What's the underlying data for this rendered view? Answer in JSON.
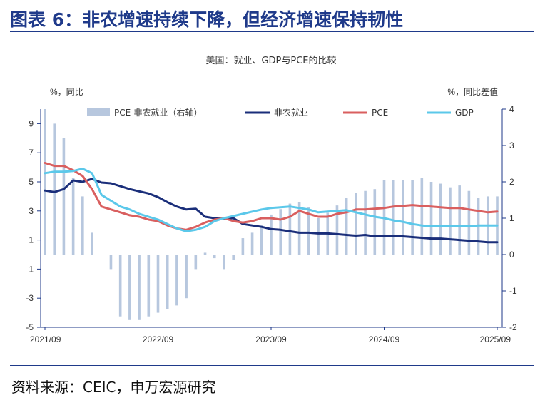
{
  "header": {
    "title": "图表 6：非农增速持续下降，但经济增速保持韧性"
  },
  "footer": {
    "source": "资料来源：CEIC，申万宏源研究"
  },
  "chart_data": {
    "type": "bar+line",
    "subtitle": "美国：就业、GDP与PCE的比较",
    "ylabel_left": "%，同比",
    "ylabel_right": "%，同比差值",
    "ylim_left": [
      -5,
      10
    ],
    "ylim_right": [
      -2,
      4
    ],
    "yticks_left": [
      "9",
      "7",
      "5",
      "3",
      "1",
      "-1",
      "-3",
      "-5"
    ],
    "yticks_right": [
      "4",
      "3",
      "2",
      "1",
      "0",
      "-1",
      "-2"
    ],
    "xticks": [
      "2021/09",
      "2022/09",
      "2023/09",
      "2024/09",
      "2025/09"
    ],
    "months": 49,
    "legend": [
      "PCE-非农就业（右轴）",
      "非农就业",
      "PCE",
      "GDP"
    ],
    "colors": {
      "bar": "#b7c7de",
      "nonfarm": "#1a2e7a",
      "pce": "#d95f5f",
      "gdp": "#5bc8ea",
      "axis": "#1f3a8a"
    },
    "series": [
      {
        "name": "PCE-非农就业（右轴）",
        "axis": "right",
        "type": "bar",
        "values": [
          4.0,
          3.6,
          3.2,
          2.1,
          1.6,
          0.6,
          0,
          -0.4,
          -1.7,
          -1.8,
          -1.8,
          -1.7,
          -1.6,
          -1.5,
          -1.4,
          -1.2,
          -0.4,
          0.05,
          -0.1,
          -0.4,
          -0.15,
          0.45,
          0.6,
          0.8,
          1.1,
          1.25,
          1.4,
          1.45,
          1.3,
          1.0,
          1.15,
          1.35,
          1.55,
          1.7,
          1.75,
          1.8,
          2.05,
          2.05,
          2.05,
          2.05,
          2.1,
          2.0,
          1.95,
          1.85,
          1.9,
          1.75,
          1.55,
          1.6,
          1.6
        ]
      },
      {
        "name": "非农就业",
        "axis": "left",
        "type": "line",
        "values": [
          4.4,
          4.3,
          4.5,
          5.1,
          5.0,
          5.2,
          4.95,
          4.9,
          4.7,
          4.5,
          4.35,
          4.2,
          3.95,
          3.6,
          3.3,
          3.1,
          3.15,
          2.6,
          2.5,
          2.45,
          2.5,
          2.1,
          2.0,
          1.9,
          1.75,
          1.7,
          1.6,
          1.5,
          1.5,
          1.45,
          1.45,
          1.4,
          1.35,
          1.3,
          1.35,
          1.25,
          1.3,
          1.3,
          1.25,
          1.2,
          1.15,
          1.1,
          1.1,
          1.05,
          1.0,
          0.95,
          0.9,
          0.85,
          0.85
        ]
      },
      {
        "name": "PCE",
        "axis": "left",
        "type": "line",
        "values": [
          6.3,
          6.1,
          6.1,
          5.8,
          5.4,
          4.5,
          3.3,
          3.1,
          2.9,
          2.7,
          2.6,
          2.4,
          2.3,
          2.0,
          1.8,
          1.7,
          1.9,
          2.2,
          2.4,
          2.5,
          2.3,
          2.2,
          2.3,
          2.5,
          2.5,
          2.4,
          2.6,
          3.0,
          2.8,
          2.6,
          2.6,
          2.8,
          2.9,
          3.1,
          3.1,
          3.15,
          3.2,
          3.3,
          3.35,
          3.4,
          3.35,
          3.3,
          3.25,
          3.2,
          3.2,
          3.1,
          3.0,
          2.9,
          2.95
        ]
      },
      {
        "name": "GDP",
        "axis": "left",
        "type": "line",
        "values": [
          5.6,
          5.7,
          5.7,
          5.75,
          5.9,
          5.6,
          4.1,
          3.7,
          3.3,
          3.1,
          2.8,
          2.6,
          2.4,
          2.1,
          1.8,
          1.6,
          1.7,
          1.9,
          2.3,
          2.5,
          2.65,
          2.8,
          2.95,
          3.1,
          3.2,
          3.25,
          3.3,
          3.2,
          3.1,
          2.9,
          2.95,
          3.0,
          3.05,
          2.9,
          2.75,
          2.6,
          2.5,
          2.35,
          2.25,
          2.1,
          2.0,
          1.95,
          1.95,
          1.95,
          1.95,
          1.95,
          2.0,
          2.0,
          2.0
        ]
      }
    ]
  }
}
